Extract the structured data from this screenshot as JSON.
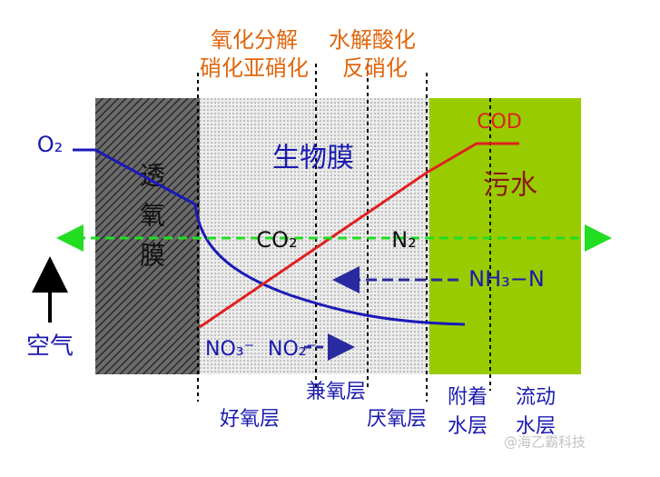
{
  "zones": {
    "membrane": "透氧膜",
    "biofilm": "生物膜",
    "sewage": "污水"
  },
  "top_labels": {
    "left": [
      "氧化分解",
      "硝化亚硝化"
    ],
    "right": [
      "水解酸化",
      "反硝化"
    ]
  },
  "curves": {
    "oxygen": "O₂",
    "cod": "COD"
  },
  "species": {
    "co2": "CO₂",
    "n2": "N₂",
    "nh3": "NH₃−N",
    "no3": "NO₃⁻",
    "no2": "NO₂⁻"
  },
  "air": "空气",
  "bottom_labels": {
    "aerobic": "好氧层",
    "facultative": "兼氧层",
    "anaerobic": "厌氧层",
    "attached_water": [
      "附着",
      "水层"
    ],
    "flowing_water": [
      "流动",
      "水层"
    ]
  },
  "watermark": "@海乙霸科技"
}
